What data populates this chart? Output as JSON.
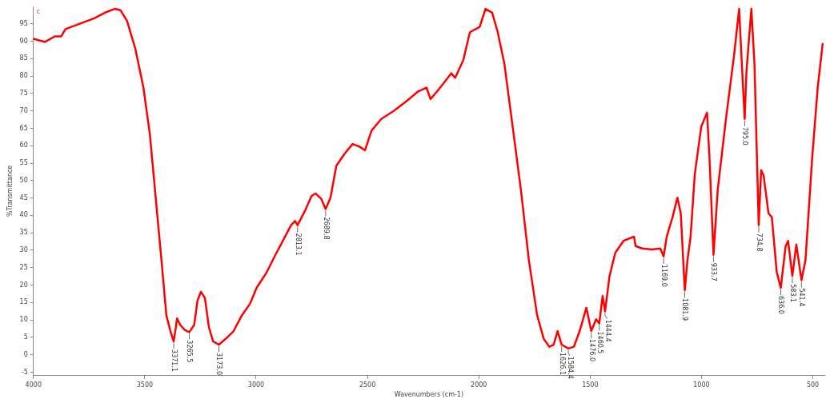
{
  "chart_data": {
    "type": "line",
    "xlabel": "Wavenumbers (cm-1)",
    "ylabel": "%Transmittance",
    "xlim": [
      4000,
      448
    ],
    "xticks": [
      4000,
      3500,
      3000,
      2500,
      2000,
      1500,
      1000,
      500
    ],
    "ylim": [
      -6,
      100
    ],
    "yticks": [
      -5,
      0,
      5,
      10,
      15,
      20,
      25,
      30,
      35,
      40,
      45,
      50,
      55,
      60,
      65,
      70,
      75,
      80,
      85,
      90,
      95
    ],
    "grid": false,
    "legend": false,
    "marker": "none",
    "line_style": "solid",
    "x": [
      4000,
      3948,
      3904,
      3875,
      3856,
      3801,
      3727,
      3672,
      3635,
      3609,
      3580,
      3543,
      3506,
      3477,
      3451,
      3425,
      3403,
      3385,
      3370,
      3355,
      3341,
      3322,
      3300,
      3278,
      3263,
      3248,
      3230,
      3212,
      3193,
      3167,
      3138,
      3101,
      3064,
      3027,
      2998,
      2954,
      2917,
      2880,
      2843,
      2825,
      2814,
      2777,
      2751,
      2733,
      2707,
      2688,
      2666,
      2640,
      2604,
      2567,
      2538,
      2511,
      2482,
      2438,
      2382,
      2327,
      2272,
      2235,
      2217,
      2187,
      2150,
      2124,
      2106,
      2069,
      2040,
      1996,
      1970,
      1940,
      1915,
      1885,
      1848,
      1811,
      1775,
      1738,
      1708,
      1683,
      1664,
      1646,
      1628,
      1598,
      1573,
      1547,
      1517,
      1495,
      1473,
      1459,
      1444,
      1433,
      1413,
      1387,
      1350,
      1303,
      1296,
      1266,
      1222,
      1185,
      1170,
      1156,
      1130,
      1108,
      1093,
      1075,
      1063,
      1049,
      1030,
      1001,
      975,
      964,
      946,
      927,
      890,
      854,
      831,
      817,
      806,
      798,
      776,
      762,
      743,
      732,
      721,
      699,
      684,
      662,
      644,
      622,
      611,
      592,
      574,
      551,
      533,
      503,
      478,
      456
    ],
    "series": [
      {
        "color": "#ff0000",
        "values": [
          90.7,
          89.8,
          91.4,
          91.4,
          93.5,
          94.8,
          96.6,
          98.4,
          99.3,
          98.9,
          95.9,
          88,
          76.7,
          63.2,
          45.1,
          27.1,
          11.3,
          6.8,
          3.8,
          10.4,
          8.6,
          7.2,
          6.5,
          8.6,
          15.6,
          18.1,
          16.3,
          7.9,
          3.8,
          2.9,
          4.5,
          6.8,
          11.3,
          14.7,
          19.2,
          23.5,
          28.2,
          32.7,
          37.2,
          38.4,
          37.2,
          41.8,
          45.6,
          46.3,
          44.7,
          41.8,
          45.1,
          54.2,
          57.6,
          60.5,
          59.8,
          58.7,
          64.3,
          67.7,
          70,
          72.7,
          75.6,
          76.7,
          73.4,
          75.6,
          78.6,
          80.8,
          79.5,
          84.7,
          92.6,
          94.1,
          99.3,
          98.2,
          92.6,
          83.5,
          65.5,
          47.4,
          27.1,
          11.3,
          4.5,
          2.3,
          2.9,
          6.8,
          2.9,
          1.8,
          2.3,
          6.8,
          13.5,
          6.8,
          10.2,
          9,
          16.9,
          12.4,
          22.6,
          29.3,
          32.7,
          33.9,
          31.2,
          30.5,
          30.2,
          30.5,
          28.2,
          33.9,
          39.5,
          45.1,
          40.6,
          18.5,
          27.1,
          33.9,
          51.9,
          65.5,
          69.5,
          56.4,
          28.7,
          47.4,
          67.7,
          85.8,
          99.3,
          81.3,
          67.7,
          81.3,
          99.3,
          83.5,
          37.2,
          53,
          51.5,
          40.6,
          39.5,
          23.7,
          19.2,
          31.2,
          32.7,
          22.6,
          31.6,
          21.4,
          27.1,
          56.4,
          76.7,
          89.2
        ]
      }
    ],
    "annotations": [
      "c",
      {
        "text": "3371.1",
        "x": 3370,
        "y": 3.8
      },
      {
        "text": "3265.5",
        "x": 3300,
        "y": 6.5
      },
      {
        "text": "3173.0",
        "x": 3167,
        "y": 2.9
      },
      {
        "text": "2813.1",
        "x": 2814,
        "y": 37.2
      },
      {
        "text": "2689.8",
        "x": 2688,
        "y": 41.8
      },
      {
        "text": "1626.1",
        "x": 1628,
        "y": 2.9
      },
      {
        "text": "1584.4",
        "x": 1598,
        "y": 1.8
      },
      {
        "text": "1476.0",
        "x": 1495,
        "y": 6.8
      },
      {
        "text": "1460.5",
        "x": 1459,
        "y": 9
      },
      {
        "text": "1444.4",
        "x": 1433,
        "y": 12.4
      },
      {
        "text": "1169.0",
        "x": 1170,
        "y": 28.2
      },
      {
        "text": "1081.9",
        "x": 1075,
        "y": 18.5
      },
      {
        "text": "933.7",
        "x": 946,
        "y": 28.7
      },
      {
        "text": "795.0",
        "x": 806,
        "y": 67.7
      },
      {
        "text": "734.8",
        "x": 743,
        "y": 37.2
      },
      {
        "text": "636.0",
        "x": 644,
        "y": 19.2
      },
      {
        "text": "583.1",
        "x": 592,
        "y": 22.6
      },
      {
        "text": "541.4",
        "x": 551,
        "y": 21.4
      }
    ]
  }
}
